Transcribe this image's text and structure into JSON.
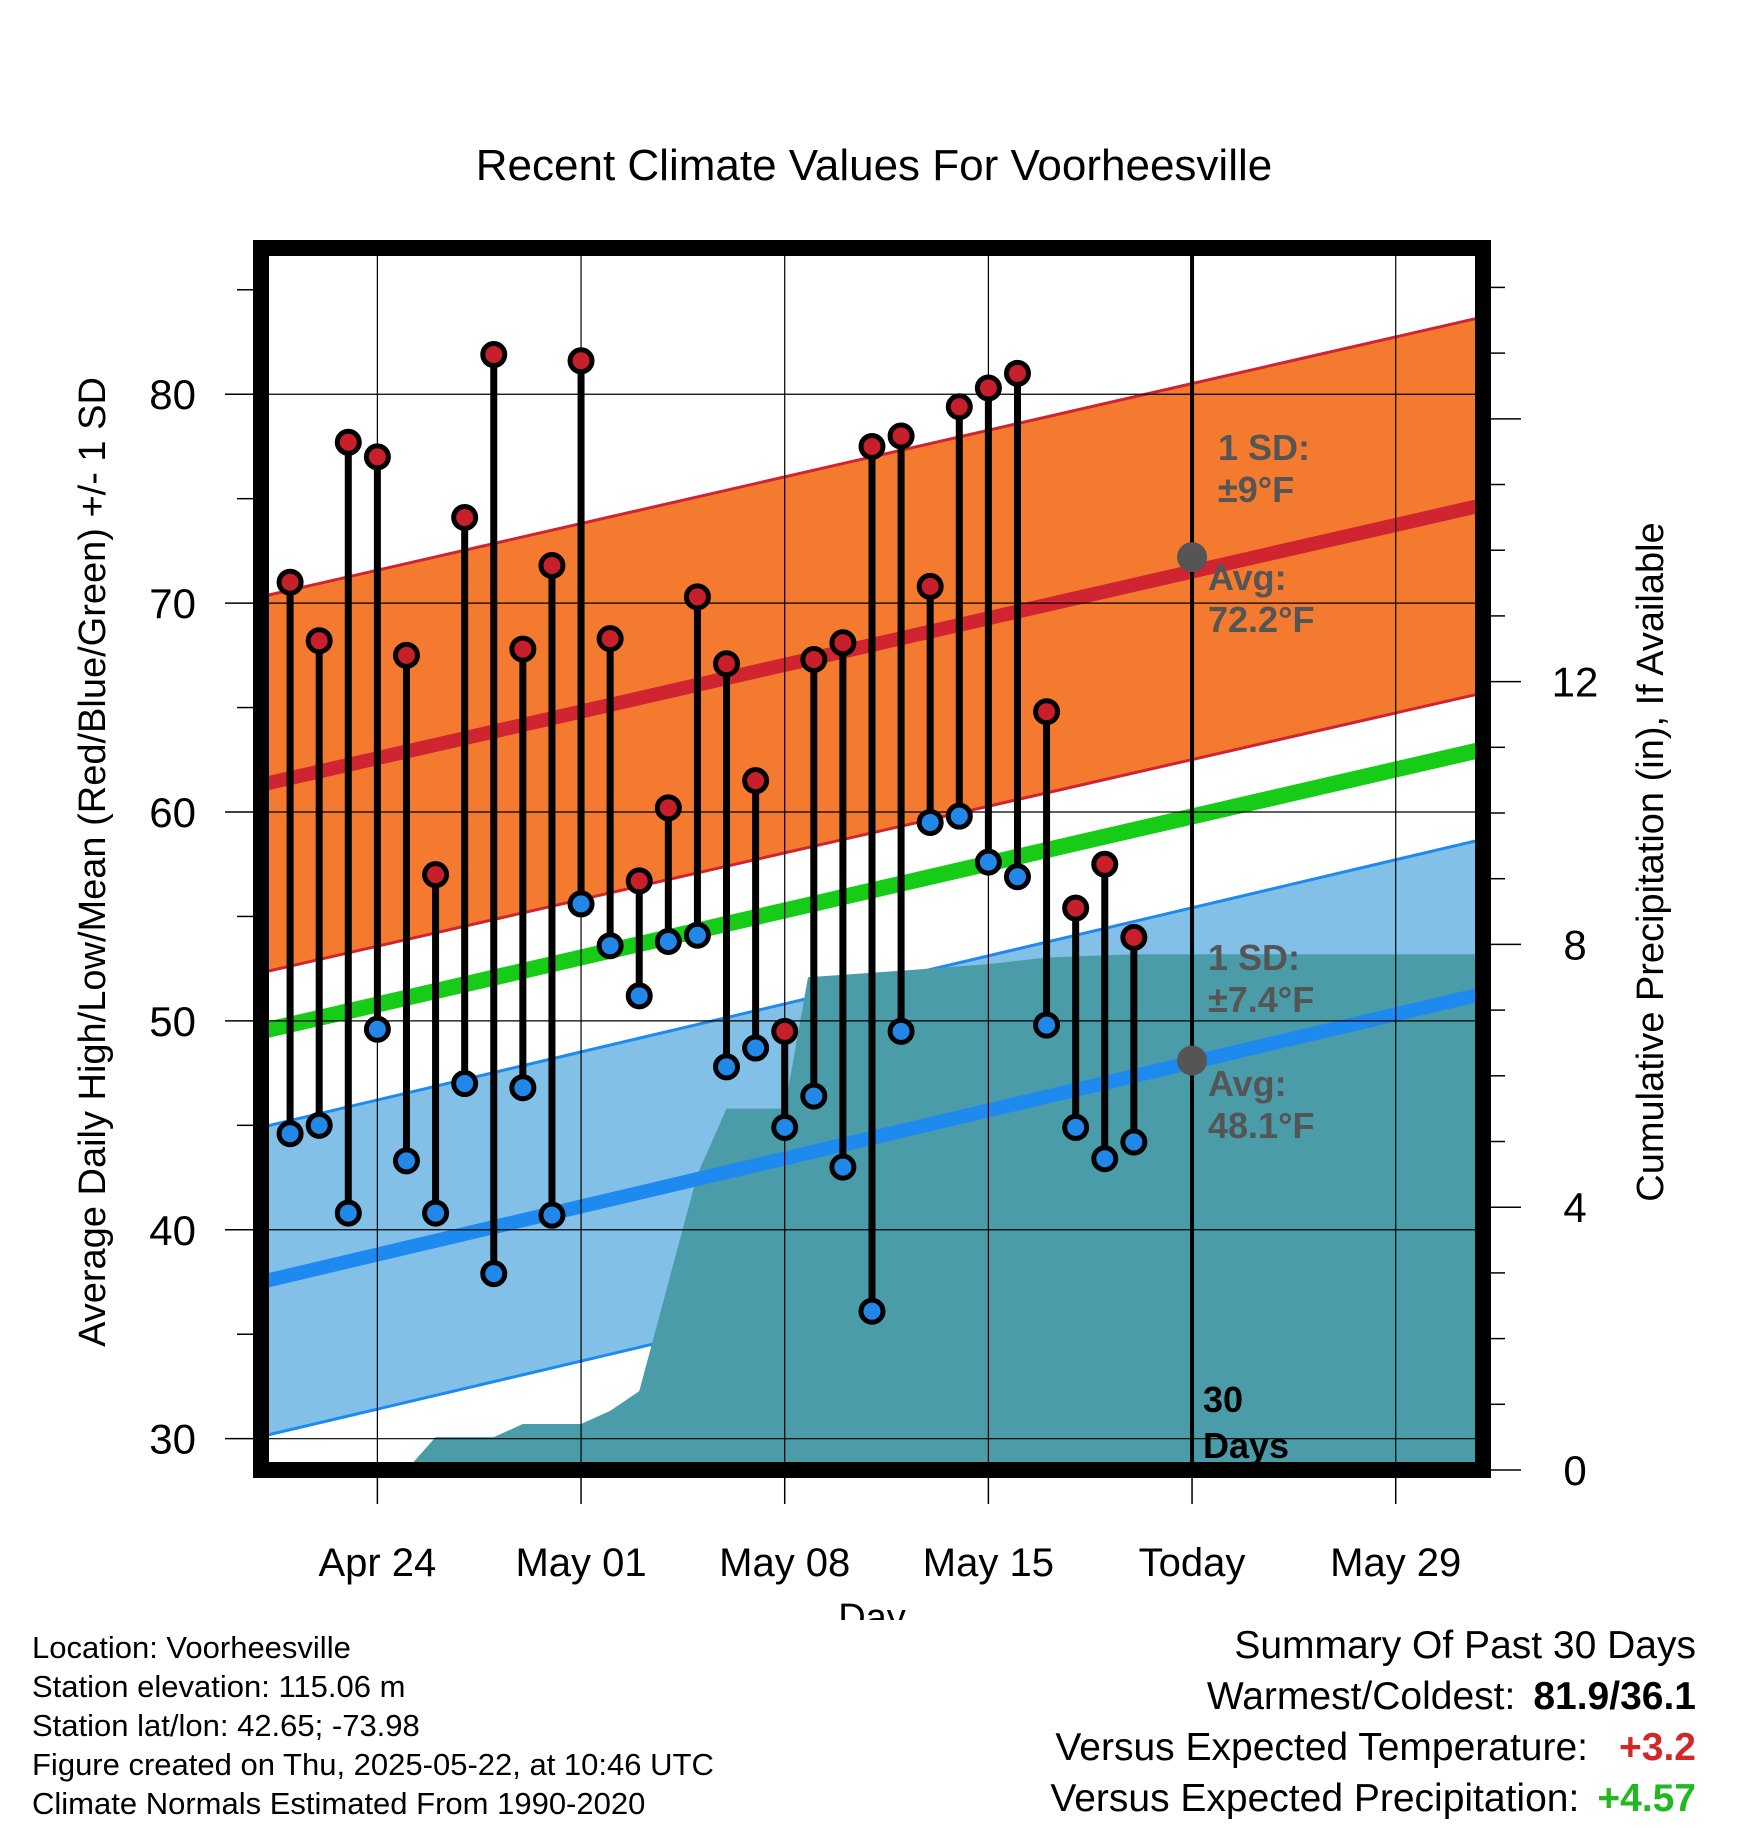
{
  "chart_data": {
    "type": "line",
    "title": "Recent Climate Values For Voorheesville",
    "xlabel": "Day",
    "ylabel": "Average Daily High/Low/Mean (Red/Blue/Green) +/- 1 SD",
    "y2label": "Cumulative Precipitation (in), If Available",
    "ylim": [
      28.5,
      87
    ],
    "y2lim": [
      0,
      18.6
    ],
    "xlim": [
      "2025-04-20",
      "2025-06-01"
    ],
    "xticks": [
      {
        "date": "2025-04-24",
        "label": "Apr 24"
      },
      {
        "date": "2025-05-01",
        "label": "May 01"
      },
      {
        "date": "2025-05-08",
        "label": "May 08"
      },
      {
        "date": "2025-05-15",
        "label": "May 15"
      },
      {
        "date": "2025-05-22",
        "label": "Today"
      },
      {
        "date": "2025-05-29",
        "label": "May 29"
      }
    ],
    "yticks": [
      30,
      40,
      50,
      60,
      70,
      80
    ],
    "y2ticks": [
      0,
      4,
      8,
      12
    ],
    "grid": true,
    "today": "2025-05-22",
    "period_label": [
      "30",
      "Days"
    ],
    "dates": [
      "2025-04-21",
      "2025-04-22",
      "2025-04-23",
      "2025-04-24",
      "2025-04-25",
      "2025-04-26",
      "2025-04-27",
      "2025-04-28",
      "2025-04-29",
      "2025-04-30",
      "2025-05-01",
      "2025-05-02",
      "2025-05-03",
      "2025-05-04",
      "2025-05-05",
      "2025-05-06",
      "2025-05-07",
      "2025-05-08",
      "2025-05-09",
      "2025-05-10",
      "2025-05-11",
      "2025-05-12",
      "2025-05-13",
      "2025-05-14",
      "2025-05-15",
      "2025-05-16",
      "2025-05-17",
      "2025-05-18",
      "2025-05-19",
      "2025-05-20",
      "2025-05-21"
    ],
    "series": [
      {
        "name": "High",
        "color": "#c8202a",
        "values": [
          71.0,
          68.2,
          77.7,
          77.0,
          67.5,
          57.0,
          74.1,
          81.9,
          67.8,
          71.8,
          81.6,
          68.3,
          56.7,
          60.2,
          70.3,
          67.1,
          61.5,
          49.5,
          67.3,
          68.1,
          77.5,
          78.0,
          70.8,
          79.4,
          80.3,
          81.0,
          64.8,
          55.4,
          57.5,
          54.0,
          null
        ]
      },
      {
        "name": "Low",
        "color": "#2288e8",
        "values": [
          44.6,
          45.0,
          40.8,
          49.6,
          43.3,
          40.8,
          47.0,
          37.9,
          46.8,
          40.7,
          55.6,
          53.6,
          51.2,
          53.8,
          54.1,
          47.8,
          48.7,
          44.9,
          46.4,
          43.0,
          36.1,
          49.5,
          59.5,
          59.8,
          57.6,
          56.9,
          49.8,
          44.9,
          43.4,
          44.2,
          null
        ]
      }
    ],
    "normal_high": {
      "start": 61.3,
      "end": 74.7,
      "today": 72.2,
      "sd": 9,
      "color": "#d02430",
      "band_color": "#f47a30"
    },
    "normal_low": {
      "start": 37.5,
      "end": 51.3,
      "today": 48.1,
      "sd": 7.4,
      "color": "#1e8af0",
      "band_color": "#82c0e8"
    },
    "normal_mean": {
      "start": 49.5,
      "end": 63.0,
      "color": "#16cc16"
    },
    "precipitation": {
      "color": "#4a9ca8",
      "points": [
        [
          "2025-04-20",
          0
        ],
        [
          "2025-04-25",
          0
        ],
        [
          "2025-04-26",
          0.5
        ],
        [
          "2025-04-28",
          0.5
        ],
        [
          "2025-04-29",
          0.7
        ],
        [
          "2025-05-01",
          0.7
        ],
        [
          "2025-05-02",
          0.9
        ],
        [
          "2025-05-03",
          1.2
        ],
        [
          "2025-05-05",
          4.5
        ],
        [
          "2025-05-06",
          5.5
        ],
        [
          "2025-05-08",
          5.5
        ],
        [
          "2025-05-08.8",
          7.5
        ],
        [
          "2025-05-12",
          7.6
        ],
        [
          "2025-05-15",
          7.7
        ],
        [
          "2025-05-17",
          7.8
        ],
        [
          "2025-05-20",
          7.85
        ],
        [
          "2025-05-21",
          7.85
        ],
        [
          "2025-06-01",
          7.85
        ]
      ]
    },
    "annotations": {
      "high_sd": [
        "1 SD:",
        "±9°F"
      ],
      "high_avg": [
        "Avg:",
        "72.2°F"
      ],
      "low_sd": [
        "1 SD:",
        "±7.4°F"
      ],
      "low_avg": [
        "Avg:",
        "48.1°F"
      ]
    }
  },
  "footer": {
    "location": "Location: Voorheesville",
    "elevation": "Station elevation: 115.06 m",
    "latlon": "Station lat/lon: 42.65; -73.98",
    "created": "Figure created on Thu, 2025-05-22, at 10:46 UTC",
    "normals": "Climate Normals Estimated From 1990-2020"
  },
  "summary": {
    "title": "Summary Of Past 30 Days",
    "warmest_coldest_label": "Warmest/Coldest:",
    "warmest_coldest_value": "81.9/36.1",
    "temp_label": "Versus Expected Temperature:",
    "temp_value": "+3.2",
    "temp_color": "#d0282a",
    "precip_label": "Versus Expected Precipitation:",
    "precip_value": "+4.57",
    "precip_color": "#22b822"
  }
}
